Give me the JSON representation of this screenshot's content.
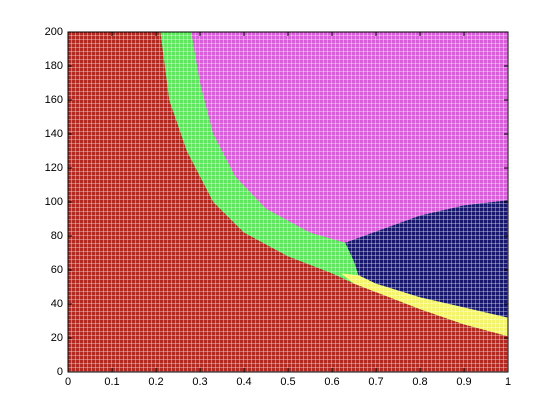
{
  "chart_data": {
    "type": "region",
    "xlim": [
      0,
      1
    ],
    "ylim": [
      0,
      200
    ],
    "xticks": [
      0,
      0.1,
      0.2,
      0.3,
      0.4,
      0.5,
      0.6,
      0.7,
      0.8,
      0.9,
      1
    ],
    "yticks": [
      0,
      20,
      40,
      60,
      80,
      100,
      120,
      140,
      160,
      180,
      200
    ],
    "regions": [
      {
        "color": "#b22a22",
        "x": [
          0,
          1,
          1,
          0
        ],
        "y": [
          0,
          0,
          200,
          200
        ]
      },
      {
        "color": "#5ee65e",
        "x": [
          0.21,
          0.23,
          0.27,
          0.33,
          0.4,
          0.5,
          0.6,
          0.65,
          0.7,
          0.8,
          0.9,
          1,
          1
        ],
        "y": [
          200,
          160,
          130,
          100,
          82,
          68,
          58,
          52,
          47,
          37,
          28,
          21,
          200
        ]
      },
      {
        "color": "#f4f46a",
        "x": [
          0.62,
          0.65,
          0.7,
          0.8,
          0.9,
          1,
          1,
          0.9,
          0.8,
          0.7,
          0.66
        ],
        "y": [
          58,
          52,
          47,
          37,
          28,
          21,
          32,
          38,
          44,
          52,
          57
        ]
      },
      {
        "color": "#d95ed9",
        "x": [
          0.28,
          0.3,
          0.33,
          0.38,
          0.45,
          0.55,
          0.63,
          0.8,
          0.9,
          1,
          1
        ],
        "y": [
          200,
          170,
          140,
          115,
          96,
          82,
          76,
          92,
          98,
          101,
          200
        ]
      },
      {
        "color": "#18186e",
        "x": [
          0.63,
          0.8,
          0.9,
          1,
          1,
          0.9,
          0.8,
          0.7,
          0.66,
          0.65
        ],
        "y": [
          76,
          92,
          98,
          101,
          32,
          38,
          44,
          52,
          57,
          65
        ]
      }
    ]
  }
}
